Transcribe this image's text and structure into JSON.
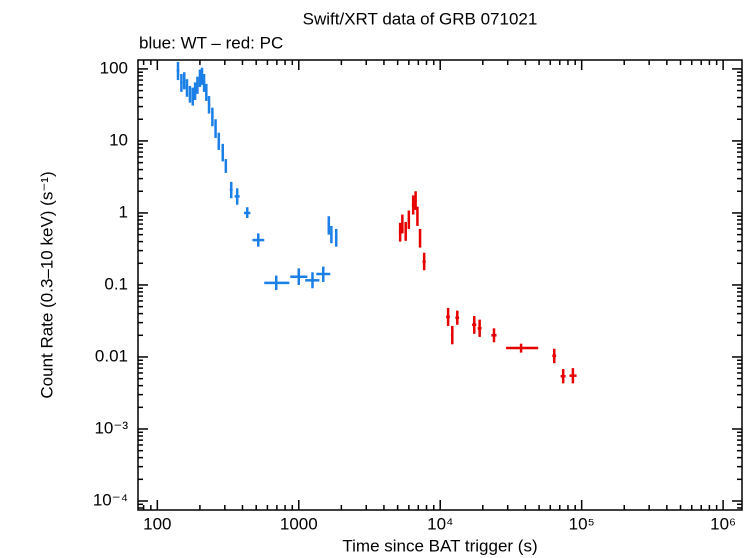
{
  "chart_data": {
    "type": "scatter",
    "title": "Swift/XRT data of GRB 071021",
    "subtitle": "blue: WT – red: PC",
    "x_label": "Time since BAT trigger (s)",
    "y_label": "Count Rate (0.3–10 keV) (s⁻¹)",
    "xlog": true,
    "ylog": true,
    "xlim": [
      73,
      1360000
    ],
    "ylim": [
      7.5e-05,
      133
    ],
    "xticks": [
      100,
      1000,
      {
        "value": 10000,
        "label": "10⁴"
      },
      {
        "value": 100000,
        "label": "10⁵"
      },
      {
        "value": 1000000,
        "label": "10⁶"
      }
    ],
    "yticks": [
      {
        "value": 0.0001,
        "label": "10⁻⁴"
      },
      {
        "value": 0.001,
        "label": "10⁻³"
      },
      0.01,
      0.1,
      1,
      10,
      100
    ],
    "series": [
      {
        "color": "#1a7fe6",
        "x": [
          140,
          148,
          155,
          162,
          170,
          178,
          185,
          192,
          200,
          207,
          214,
          222,
          232,
          245,
          258,
          272,
          290,
          305,
          333,
          367,
          432,
          517,
          693,
          1000,
          1250,
          1490,
          1630,
          1700,
          1840
        ],
        "values": [
          95,
          65,
          70,
          55,
          45,
          42,
          50,
          60,
          75,
          80,
          65,
          48,
          32,
          22,
          15,
          10,
          7,
          4.5,
          2.1,
          1.7,
          1.0,
          0.42,
          0.107,
          0.13,
          0.116,
          0.142,
          0.68,
          0.5,
          0.45
        ],
        "x_low": [
          137,
          145,
          152,
          159,
          167,
          175,
          182,
          189,
          196,
          203,
          210,
          218,
          228,
          241,
          254,
          268,
          285,
          300,
          325,
          352,
          410,
          470,
          570,
          870,
          1110,
          1330,
          1600,
          1670,
          1800
        ],
        "x_high": [
          143,
          151,
          158,
          165,
          173,
          181,
          188,
          195,
          204,
          211,
          218,
          226,
          236,
          249,
          262,
          276,
          295,
          310,
          341,
          382,
          455,
          570,
          857,
          1150,
          1400,
          1670,
          1660,
          1730,
          1880
        ],
        "y_low": [
          70,
          48,
          52,
          41,
          34,
          31,
          37,
          45,
          56,
          60,
          48,
          36,
          24,
          16,
          11,
          7.5,
          5.2,
          3.6,
          1.6,
          1.3,
          0.85,
          0.34,
          0.085,
          0.1,
          0.09,
          0.11,
          0.5,
          0.38,
          0.34
        ],
        "y_high": [
          125,
          85,
          90,
          72,
          58,
          55,
          65,
          78,
          98,
          104,
          85,
          62,
          42,
          29,
          20,
          13,
          9.1,
          5.6,
          2.7,
          2.2,
          1.2,
          0.52,
          0.135,
          0.17,
          0.15,
          0.18,
          0.9,
          0.66,
          0.6
        ]
      },
      {
        "color": "#e60000",
        "x": [
          5210,
          5400,
          5700,
          6000,
          6440,
          6700,
          6900,
          7200,
          7700,
          11370,
          12170,
          13200,
          17400,
          19000,
          24000,
          37300,
          64000,
          74000,
          86700
        ],
        "values": [
          0.54,
          0.7,
          0.55,
          0.8,
          1.29,
          1.5,
          0.9,
          0.45,
          0.21,
          0.036,
          0.02,
          0.035,
          0.028,
          0.025,
          0.02,
          0.0133,
          0.0104,
          0.0054,
          0.0055
        ],
        "x_low": [
          5100,
          5300,
          5600,
          5900,
          6300,
          6600,
          6800,
          7100,
          7500,
          11000,
          11900,
          12800,
          16800,
          18400,
          23000,
          29200,
          62000,
          71000,
          82000
        ],
        "x_high": [
          5320,
          5500,
          5800,
          6100,
          6580,
          6800,
          7000,
          7300,
          7900,
          11700,
          12400,
          13600,
          18000,
          19600,
          25000,
          49300,
          66000,
          77000,
          92000
        ],
        "y_low": [
          0.4,
          0.52,
          0.41,
          0.6,
          0.95,
          1.1,
          0.66,
          0.33,
          0.16,
          0.027,
          0.015,
          0.028,
          0.021,
          0.019,
          0.016,
          0.0115,
          0.0082,
          0.0043,
          0.0043
        ],
        "y_high": [
          0.73,
          0.95,
          0.75,
          1.08,
          1.75,
          2.0,
          1.22,
          0.6,
          0.28,
          0.048,
          0.027,
          0.044,
          0.037,
          0.033,
          0.025,
          0.0153,
          0.013,
          0.0068,
          0.007
        ]
      }
    ]
  }
}
